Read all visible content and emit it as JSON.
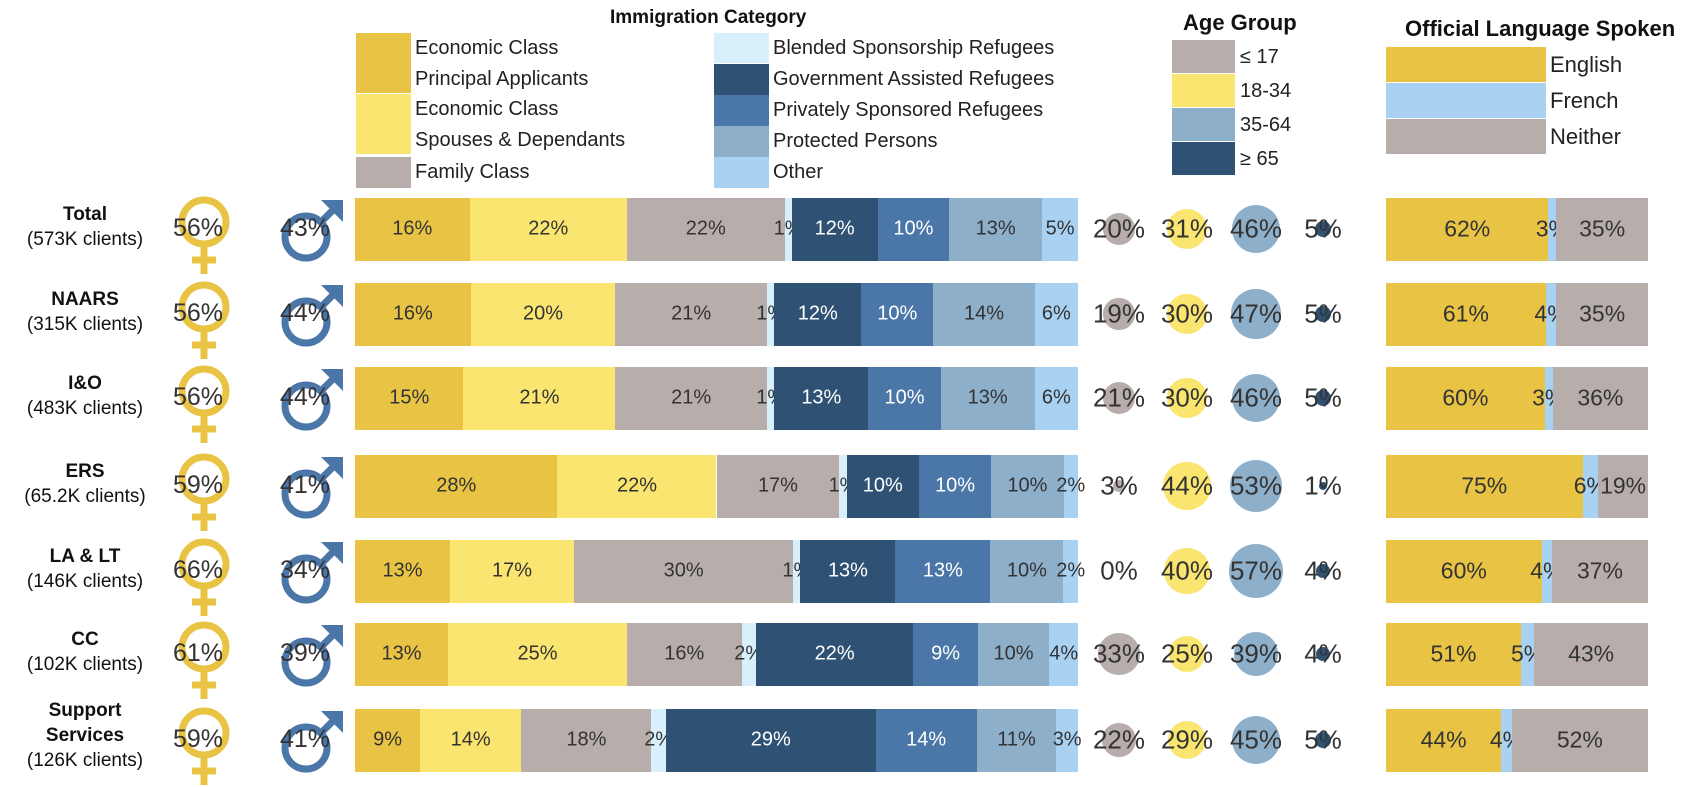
{
  "chart_data": {
    "type": "bar",
    "stacked": true,
    "legends": {
      "immigration": {
        "title": "Immigration Category",
        "items": [
          {
            "label_lines": [
              "Economic Class",
              "Principal Applicants"
            ],
            "color": "#e9c444"
          },
          {
            "label_lines": [
              "Economic Class",
              "Spouses & Dependants"
            ],
            "color": "#f9e56f"
          },
          {
            "label_lines": [
              "Family Class"
            ],
            "color": "#b7aeab"
          },
          {
            "label_lines": [
              "Blended Sponsorship Refugees"
            ],
            "color": "#d8f0fc"
          },
          {
            "label_lines": [
              "Government Assisted Refugees"
            ],
            "color": "#2f5274"
          },
          {
            "label_lines": [
              "Privately Sponsored Refugees"
            ],
            "color": "#4a77a8"
          },
          {
            "label_lines": [
              "Protected Persons"
            ],
            "color": "#8eafca"
          },
          {
            "label_lines": [
              "Other"
            ],
            "color": "#a9d1f2"
          }
        ]
      },
      "age": {
        "title": "Age Group",
        "items": [
          {
            "label": "≤ 17",
            "color": "#b7aeab"
          },
          {
            "label": "18-34",
            "color": "#f9e56f"
          },
          {
            "label": "35-64",
            "color": "#8eafca"
          },
          {
            "label": "≥ 65",
            "color": "#2f5274"
          }
        ]
      },
      "language": {
        "title": "Official Language Spoken",
        "items": [
          {
            "label": "English",
            "color": "#e9c444"
          },
          {
            "label": "French",
            "color": "#a9d1f2"
          },
          {
            "label": "Neither",
            "color": "#b7aeab"
          }
        ]
      }
    },
    "rows": [
      {
        "name": "Total",
        "clients": "(573K clients)",
        "female": "56%",
        "male": "43%",
        "immigration": [
          16,
          22,
          22,
          1,
          12,
          10,
          13,
          5
        ],
        "immigration_labels": [
          "16%",
          "22%",
          "22%",
          "1%",
          "12%",
          "10%",
          "13%",
          "5%"
        ],
        "age": [
          20,
          31,
          46,
          5
        ],
        "age_labels": [
          "20%",
          "31%",
          "46%",
          "5%"
        ],
        "language": [
          62,
          3,
          35
        ],
        "language_labels": [
          "62%",
          "3%",
          "35%"
        ]
      },
      {
        "name": "NAARS",
        "clients": "(315K clients)",
        "female": "56%",
        "male": "44%",
        "immigration": [
          16,
          20,
          21,
          1,
          12,
          10,
          14,
          6
        ],
        "immigration_labels": [
          "16%",
          "20%",
          "21%",
          "1%",
          "12%",
          "10%",
          "14%",
          "6%"
        ],
        "age": [
          19,
          30,
          47,
          5
        ],
        "age_labels": [
          "19%",
          "30%",
          "47%",
          "5%"
        ],
        "language": [
          61,
          4,
          35
        ],
        "language_labels": [
          "61%",
          "4%",
          "35%"
        ]
      },
      {
        "name": "I&O",
        "clients": "(483K clients)",
        "female": "56%",
        "male": "44%",
        "immigration": [
          15,
          21,
          21,
          1,
          13,
          10,
          13,
          6
        ],
        "immigration_labels": [
          "15%",
          "21%",
          "21%",
          "1%",
          "13%",
          "10%",
          "13%",
          "6%"
        ],
        "age": [
          21,
          30,
          46,
          5
        ],
        "age_labels": [
          "21%",
          "30%",
          "46%",
          "5%"
        ],
        "language": [
          60,
          3,
          36
        ],
        "language_labels": [
          "60%",
          "3%",
          "36%"
        ]
      },
      {
        "name": "ERS",
        "clients": "(65.2K clients)",
        "female": "59%",
        "male": "41%",
        "immigration": [
          28,
          22,
          17,
          1,
          10,
          10,
          10,
          2
        ],
        "immigration_labels": [
          "28%",
          "22%",
          "17%",
          "1%",
          "10%",
          "10%",
          "10%",
          "2%"
        ],
        "age": [
          3,
          44,
          53,
          1
        ],
        "age_labels": [
          "3%",
          "44%",
          "53%",
          "1%"
        ],
        "language": [
          75,
          6,
          19
        ],
        "language_labels": [
          "75%",
          "6%",
          "19%"
        ]
      },
      {
        "name": "LA & LT",
        "clients": "(146K clients)",
        "female": "66%",
        "male": "34%",
        "immigration": [
          13,
          17,
          30,
          1,
          13,
          13,
          10,
          2
        ],
        "immigration_labels": [
          "13%",
          "17%",
          "30%",
          "1%",
          "13%",
          "13%",
          "10%",
          "2%"
        ],
        "age": [
          0,
          40,
          57,
          4
        ],
        "age_labels": [
          "0%",
          "40%",
          "57%",
          "4%"
        ],
        "language": [
          60,
          4,
          37
        ],
        "language_labels": [
          "60%",
          "4%",
          "37%"
        ]
      },
      {
        "name": "CC",
        "clients": "(102K clients)",
        "female": "61%",
        "male": "39%",
        "immigration": [
          13,
          25,
          16,
          2,
          22,
          9,
          10,
          4
        ],
        "immigration_labels": [
          "13%",
          "25%",
          "16%",
          "2%",
          "22%",
          "9%",
          "10%",
          "4%"
        ],
        "age": [
          33,
          25,
          39,
          4
        ],
        "age_labels": [
          "33%",
          "25%",
          "39%",
          "4%"
        ],
        "language": [
          51,
          5,
          43
        ],
        "language_labels": [
          "51%",
          "5%",
          "43%"
        ]
      },
      {
        "name": "Support Services",
        "clients": "(126K clients)",
        "female": "59%",
        "male": "41%",
        "immigration": [
          9,
          14,
          18,
          2,
          29,
          14,
          11,
          3
        ],
        "immigration_labels": [
          "9%",
          "14%",
          "18%",
          "2%",
          "29%",
          "14%",
          "11%",
          "3%"
        ],
        "age": [
          22,
          29,
          45,
          5
        ],
        "age_labels": [
          "22%",
          "29%",
          "45%",
          "5%"
        ],
        "language": [
          44,
          4,
          52
        ],
        "language_labels": [
          "44%",
          "4%",
          "52%"
        ]
      }
    ],
    "gender_colors": {
      "female": "#e9c444",
      "male": "#4a77a8"
    }
  }
}
